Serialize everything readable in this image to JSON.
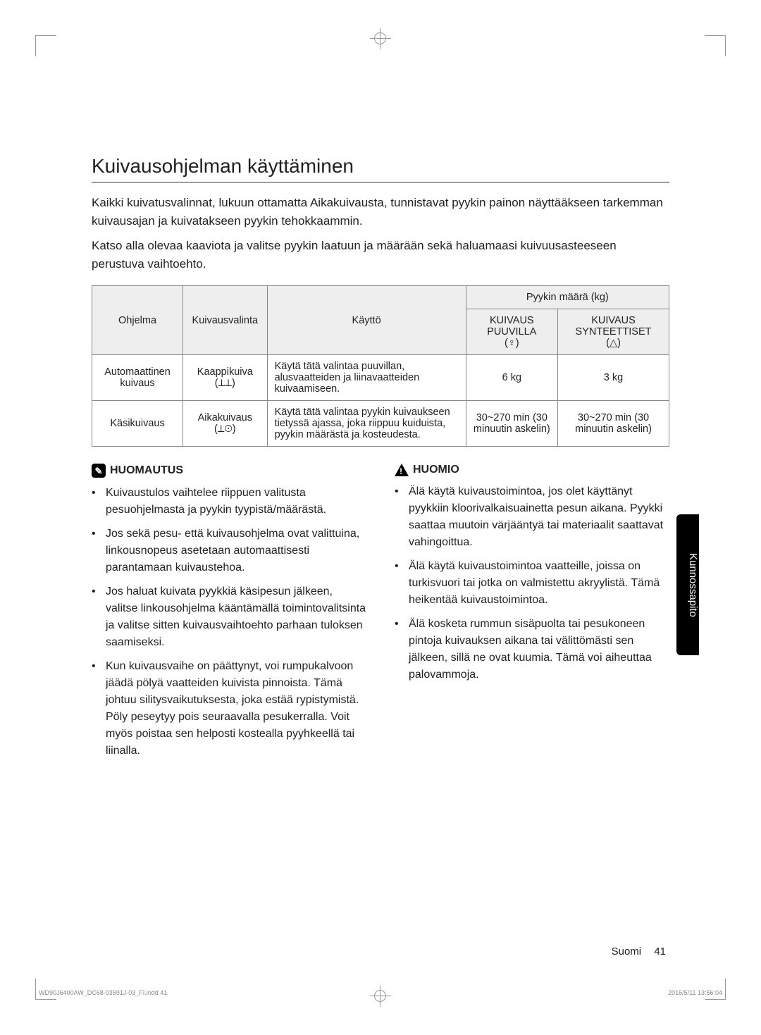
{
  "title": "Kuivausohjelman käyttäminen",
  "intro": {
    "p1": "Kaikki kuivatusvalinnat, lukuun ottamatta Aikakuivausta, tunnistavat pyykin painon näyttääkseen tarkemman kuivausajan ja kuivatakseen pyykin tehokkaammin.",
    "p2": "Katso alla olevaa kaaviota ja valitse pyykin laatuun ja määrään sekä haluamaasi kuivuusasteeseen perustuva vaihtoehto."
  },
  "table": {
    "head": {
      "ohjelma": "Ohjelma",
      "kuivausvalinta": "Kuivausvalinta",
      "kaytto": "Käyttö",
      "pyykin_maara": "Pyykin määrä (kg)",
      "kuivaus_puuvilla": "KUIVAUS PUUVILLA",
      "kuivaus_puuvilla_glyph": "(♀)",
      "kuivaus_synt": "KUIVAUS SYNTEETTISET",
      "kuivaus_synt_glyph": "(△)"
    },
    "rows": [
      {
        "ohjelma": "Automaattinen kuivaus",
        "valinta": "Kaappikuiva (⟂⟂)",
        "kaytto": "Käytä tätä valintaa puuvillan, alusvaatteiden ja liinavaatteiden kuivaamiseen.",
        "puuvilla": "6 kg",
        "synt": "3 kg"
      },
      {
        "ohjelma": "Käsikuivaus",
        "valinta": "Aikakuivaus (⟂⊙)",
        "kaytto": "Käytä tätä valintaa pyykin kuivaukseen tietyssä ajassa, joka riippuu kuiduista, pyykin määrästä ja kosteudesta.",
        "puuvilla": "30~270 min (30 minuutin askelin)",
        "synt": "30~270 min (30 minuutin askelin)"
      }
    ]
  },
  "note": {
    "heading": "HUOMAUTUS",
    "items": [
      "Kuivaustulos vaihtelee riippuen valitusta pesuohjelmasta ja pyykin tyypistä/määrästä.",
      "Jos sekä pesu- että kuivausohjelma ovat valittuina, linkousnopeus asetetaan automaattisesti parantamaan kuivaustehoa.",
      "Jos haluat kuivata pyykkiä käsipesun jälkeen, valitse linkousohjelma kääntämällä toimintovalitsinta ja valitse sitten kuivausvaihtoehto parhaan tuloksen saamiseksi.",
      "Kun kuivausvaihe on päättynyt, voi rumpukalvoon jäädä pölyä vaatteiden kuivista pinnoista. Tämä johtuu silitysvaikutuksesta, joka estää rypistymistä. Pöly peseytyy pois seuraavalla pesukerralla. Voit myös poistaa sen helposti kostealla pyyhkeellä tai liinalla."
    ]
  },
  "caution": {
    "heading": "HUOMIO",
    "items": [
      "Älä käytä kuivaustoimintoa, jos olet käyttänyt pyykkiin kloorivalkaisuainetta pesun aikana. Pyykki saattaa muutoin värjääntyä tai materiaalit saattavat vahingoittua.",
      "Älä käytä kuivaustoimintoa vaatteille, joissa on turkisvuori tai jotka on valmistettu akryylistä. Tämä heikentää kuivaustoimintoa.",
      "Älä kosketa rummun sisäpuolta tai pesukoneen pintoja kuivauksen aikana tai välittömästi sen jälkeen, sillä ne ovat kuumia. Tämä voi aiheuttaa palovammoja."
    ]
  },
  "side_tab": "Kunnossapito",
  "footer": {
    "lang": "Suomi",
    "page": "41"
  },
  "print": {
    "left": "WD90J6400AW_DC68-03591J-03_FI.indd   41",
    "right": "2016/5/11   13:56:04"
  },
  "colors": {
    "text": "#222222",
    "border": "#888888",
    "thead_bg": "#eeeeee",
    "tab_bg": "#000000",
    "tab_fg": "#ffffff",
    "crop": "#999999"
  }
}
